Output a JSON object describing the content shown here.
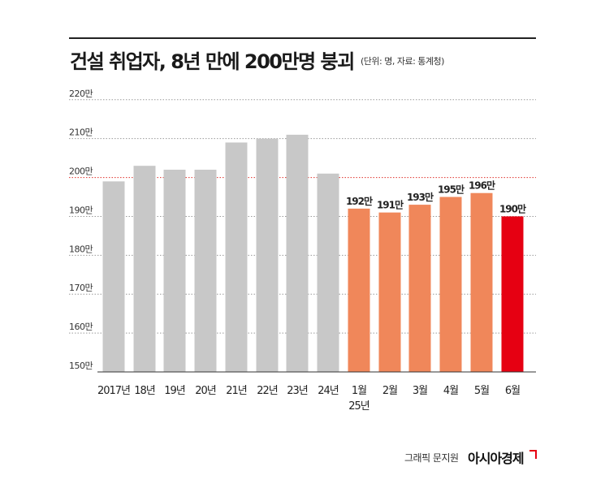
{
  "title": "건설 취업자, 8년 만에 200만명 붕괴",
  "subtitle": "(단위: 명, 자료: 통계청)",
  "credit": "그래픽 문지원",
  "brand": "아시아경제",
  "colors": {
    "gray": "#c8c8c8",
    "orange": "#f0875a",
    "red": "#e60012",
    "grid": "#9a9a9a",
    "grid_200": "#e0302a"
  },
  "chart_data": {
    "type": "bar",
    "categories": [
      "2017년",
      "18년",
      "19년",
      "20년",
      "21년",
      "22년",
      "23년",
      "24년",
      "1월",
      "2월",
      "3월",
      "4월",
      "5월",
      "6월"
    ],
    "group_label": {
      "text": "25년",
      "under": "1월"
    },
    "values": [
      199,
      203,
      202,
      202,
      209,
      210,
      211,
      201,
      192,
      191,
      193,
      195,
      196,
      190
    ],
    "data_labels": [
      null,
      null,
      null,
      null,
      null,
      null,
      null,
      null,
      "192만",
      "191만",
      "193만",
      "195만",
      "196만",
      "190만"
    ],
    "bar_colors": [
      "gray",
      "gray",
      "gray",
      "gray",
      "gray",
      "gray",
      "gray",
      "gray",
      "orange",
      "orange",
      "orange",
      "orange",
      "orange",
      "red"
    ],
    "y_ticks": [
      150,
      160,
      170,
      180,
      190,
      200,
      210,
      220
    ],
    "y_tick_labels": [
      "150만",
      "160만",
      "170만",
      "180만",
      "190만",
      "200만",
      "210만",
      "220만"
    ],
    "highlight_gridline": 200,
    "ylim": [
      150,
      222
    ],
    "grid": true,
    "units": "만 명"
  }
}
